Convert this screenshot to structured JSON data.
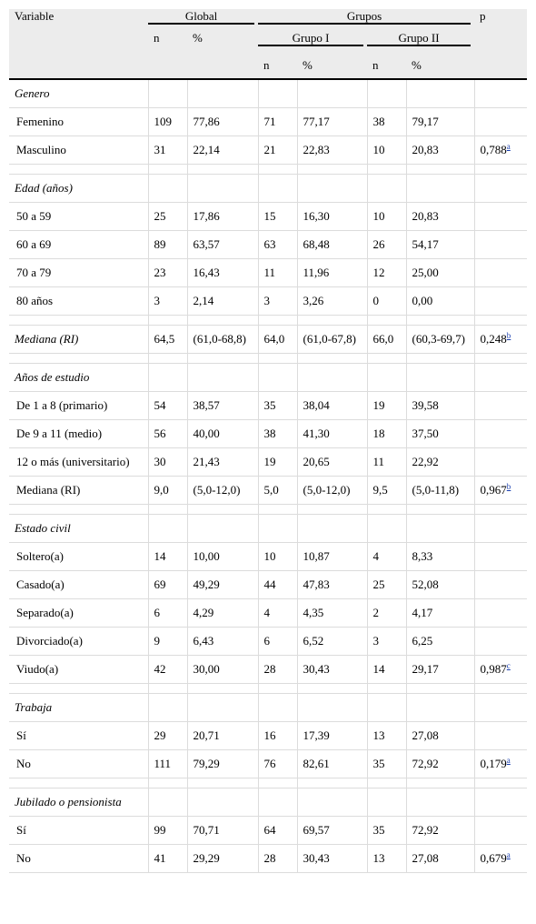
{
  "header": {
    "variable": "Variable",
    "global": "Global",
    "grupos": "Grupos",
    "p": "p",
    "n": "n",
    "pct": "%",
    "grupo1": "Grupo I",
    "grupo2": "Grupo II"
  },
  "sections": [
    {
      "title": "Genero",
      "rows": [
        {
          "label": "Femenino",
          "n": "109",
          "pct": "77,86",
          "n1": "71",
          "pct1": "77,17",
          "n2": "38",
          "pct2": "79,17",
          "p": "",
          "ref": ""
        },
        {
          "label": "Masculino",
          "n": "31",
          "pct": "22,14",
          "n1": "21",
          "pct1": "22,83",
          "n2": "10",
          "pct2": "20,83",
          "p": "0,788",
          "ref": "a"
        }
      ]
    },
    {
      "title": "Edad (años)",
      "rows": [
        {
          "label": "50 a 59",
          "n": "25",
          "pct": "17,86",
          "n1": "15",
          "pct1": "16,30",
          "n2": "10",
          "pct2": "20,83",
          "p": "",
          "ref": ""
        },
        {
          "label": "60 a 69",
          "n": "89",
          "pct": "63,57",
          "n1": "63",
          "pct1": "68,48",
          "n2": "26",
          "pct2": "54,17",
          "p": "",
          "ref": ""
        },
        {
          "label": "70 a 79",
          "n": "23",
          "pct": "16,43",
          "n1": "11",
          "pct1": "11,96",
          "n2": "12",
          "pct2": "25,00",
          "p": "",
          "ref": ""
        },
        {
          "label": "80 años",
          "n": "3",
          "pct": "2,14",
          "n1": "3",
          "pct1": "3,26",
          "n2": "0",
          "pct2": "0,00",
          "p": "",
          "ref": ""
        }
      ]
    },
    {
      "title": "",
      "rows": [
        {
          "label": "Mediana (RI)",
          "italic": true,
          "n": "64,5",
          "pct": "(61,0-68,8)",
          "n1": "64,0",
          "pct1": "(61,0-67,8)",
          "n2": "66,0",
          "pct2": "(60,3-69,7)",
          "p": "0,248",
          "ref": "b"
        }
      ]
    },
    {
      "title": "Años de estudio",
      "rows": [
        {
          "label": "De 1 a 8 (primario)",
          "n": "54",
          "pct": "38,57",
          "n1": "35",
          "pct1": "38,04",
          "n2": "19",
          "pct2": "39,58",
          "p": "",
          "ref": ""
        },
        {
          "label": "De 9 a 11 (medio)",
          "n": "56",
          "pct": "40,00",
          "n1": "38",
          "pct1": "41,30",
          "n2": "18",
          "pct2": "37,50",
          "p": "",
          "ref": ""
        },
        {
          "label": "12 o más (universitario)",
          "n": "30",
          "pct": "21,43",
          "n1": "19",
          "pct1": "20,65",
          "n2": "11",
          "pct2": "22,92",
          "p": "",
          "ref": ""
        },
        {
          "label": "Mediana (RI)",
          "n": "9,0",
          "pct": "(5,0-12,0)",
          "n1": "5,0",
          "pct1": "(5,0-12,0)",
          "n2": "9,5",
          "pct2": "(5,0-11,8)",
          "p": "0,967",
          "ref": "b"
        }
      ]
    },
    {
      "title": "Estado civil",
      "rows": [
        {
          "label": "Soltero(a)",
          "n": "14",
          "pct": "10,00",
          "n1": "10",
          "pct1": "10,87",
          "n2": "4",
          "pct2": "8,33",
          "p": "",
          "ref": ""
        },
        {
          "label": "Casado(a)",
          "n": "69",
          "pct": "49,29",
          "n1": "44",
          "pct1": "47,83",
          "n2": "25",
          "pct2": "52,08",
          "p": "",
          "ref": ""
        },
        {
          "label": "Separado(a)",
          "n": "6",
          "pct": "4,29",
          "n1": "4",
          "pct1": "4,35",
          "n2": "2",
          "pct2": "4,17",
          "p": "",
          "ref": ""
        },
        {
          "label": "Divorciado(a)",
          "n": "9",
          "pct": "6,43",
          "n1": "6",
          "pct1": "6,52",
          "n2": "3",
          "pct2": "6,25",
          "p": "",
          "ref": ""
        },
        {
          "label": "Viudo(a)",
          "n": "42",
          "pct": "30,00",
          "n1": "28",
          "pct1": "30,43",
          "n2": "14",
          "pct2": "29,17",
          "p": "0,987",
          "ref": "c"
        }
      ]
    },
    {
      "title": "Trabaja",
      "rows": [
        {
          "label": "Sí",
          "n": "29",
          "pct": "20,71",
          "n1": "16",
          "pct1": "17,39",
          "n2": "13",
          "pct2": "27,08",
          "p": "",
          "ref": ""
        },
        {
          "label": "No",
          "n": "111",
          "pct": "79,29",
          "n1": "76",
          "pct1": "82,61",
          "n2": "35",
          "pct2": "72,92",
          "p": "0,179",
          "ref": "a"
        }
      ]
    },
    {
      "title": "Jubilado o pensionista",
      "rows": [
        {
          "label": "Sí",
          "n": "99",
          "pct": "70,71",
          "n1": "64",
          "pct1": "69,57",
          "n2": "35",
          "pct2": "72,92",
          "p": "",
          "ref": ""
        },
        {
          "label": "No",
          "n": "41",
          "pct": "29,29",
          "n1": "28",
          "pct1": "30,43",
          "n2": "13",
          "pct2": "27,08",
          "p": "0,679",
          "ref": "a"
        }
      ]
    }
  ]
}
